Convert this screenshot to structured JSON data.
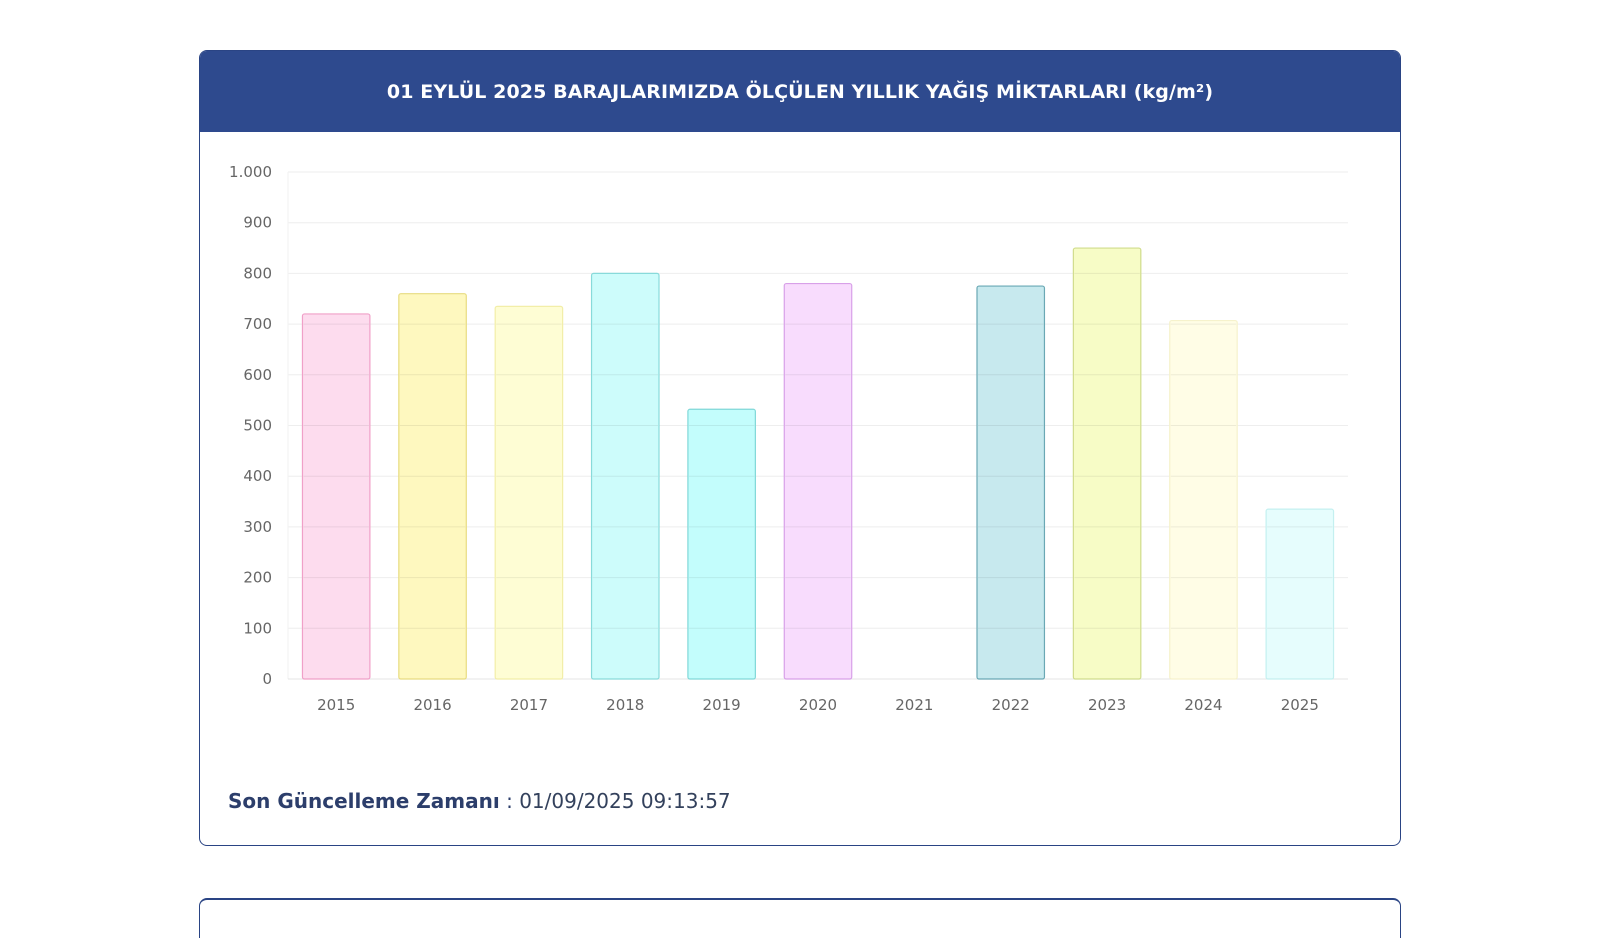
{
  "header": {
    "title": "01 EYLÜL 2025 BARAJLARIMIZDA ÖLÇÜLEN YILLIK YAĞIŞ MİKTARLARI (kg/m²)"
  },
  "footer": {
    "label": "Son Güncelleme Zamanı",
    "separator": " : ",
    "value": "01/09/2025 09:13:57"
  },
  "chart_data": {
    "type": "bar",
    "title": "01 EYLÜL 2025 BARAJLARIMIZDA ÖLÇÜLEN YILLIK YAĞIŞ MİKTARLARI (kg/m²)",
    "xlabel": "",
    "ylabel": "",
    "ylim": [
      0,
      1000
    ],
    "yticks": [
      0,
      100,
      200,
      300,
      400,
      500,
      600,
      700,
      800,
      900,
      1000
    ],
    "ytick_labels": [
      "0",
      "100",
      "200",
      "300",
      "400",
      "500",
      "600",
      "700",
      "800",
      "900",
      "1.000"
    ],
    "grid": true,
    "legend": "none",
    "categories": [
      "2015",
      "2016",
      "2017",
      "2018",
      "2019",
      "2020",
      "2021",
      "2022",
      "2023",
      "2024",
      "2025"
    ],
    "values": [
      720,
      760,
      735,
      800,
      532,
      780,
      0,
      775,
      850,
      707,
      335
    ],
    "colors": {
      "fill": [
        "#fddcee",
        "#fef8bf",
        "#fefdd4",
        "#cdfcfb",
        "#c3fdfc",
        "#f8dcfd",
        "#ffffff",
        "#c7e9ee",
        "#f7fcc6",
        "#fffde6",
        "#e6fdfd"
      ],
      "stroke": [
        "#f0a0c8",
        "#e8dc80",
        "#f2eea8",
        "#88dada",
        "#80d8d8",
        "#d8a0e8",
        "#ffffff",
        "#6aa8b4",
        "#d0dc8c",
        "#f6f2cc",
        "#c4f0f0"
      ]
    }
  }
}
